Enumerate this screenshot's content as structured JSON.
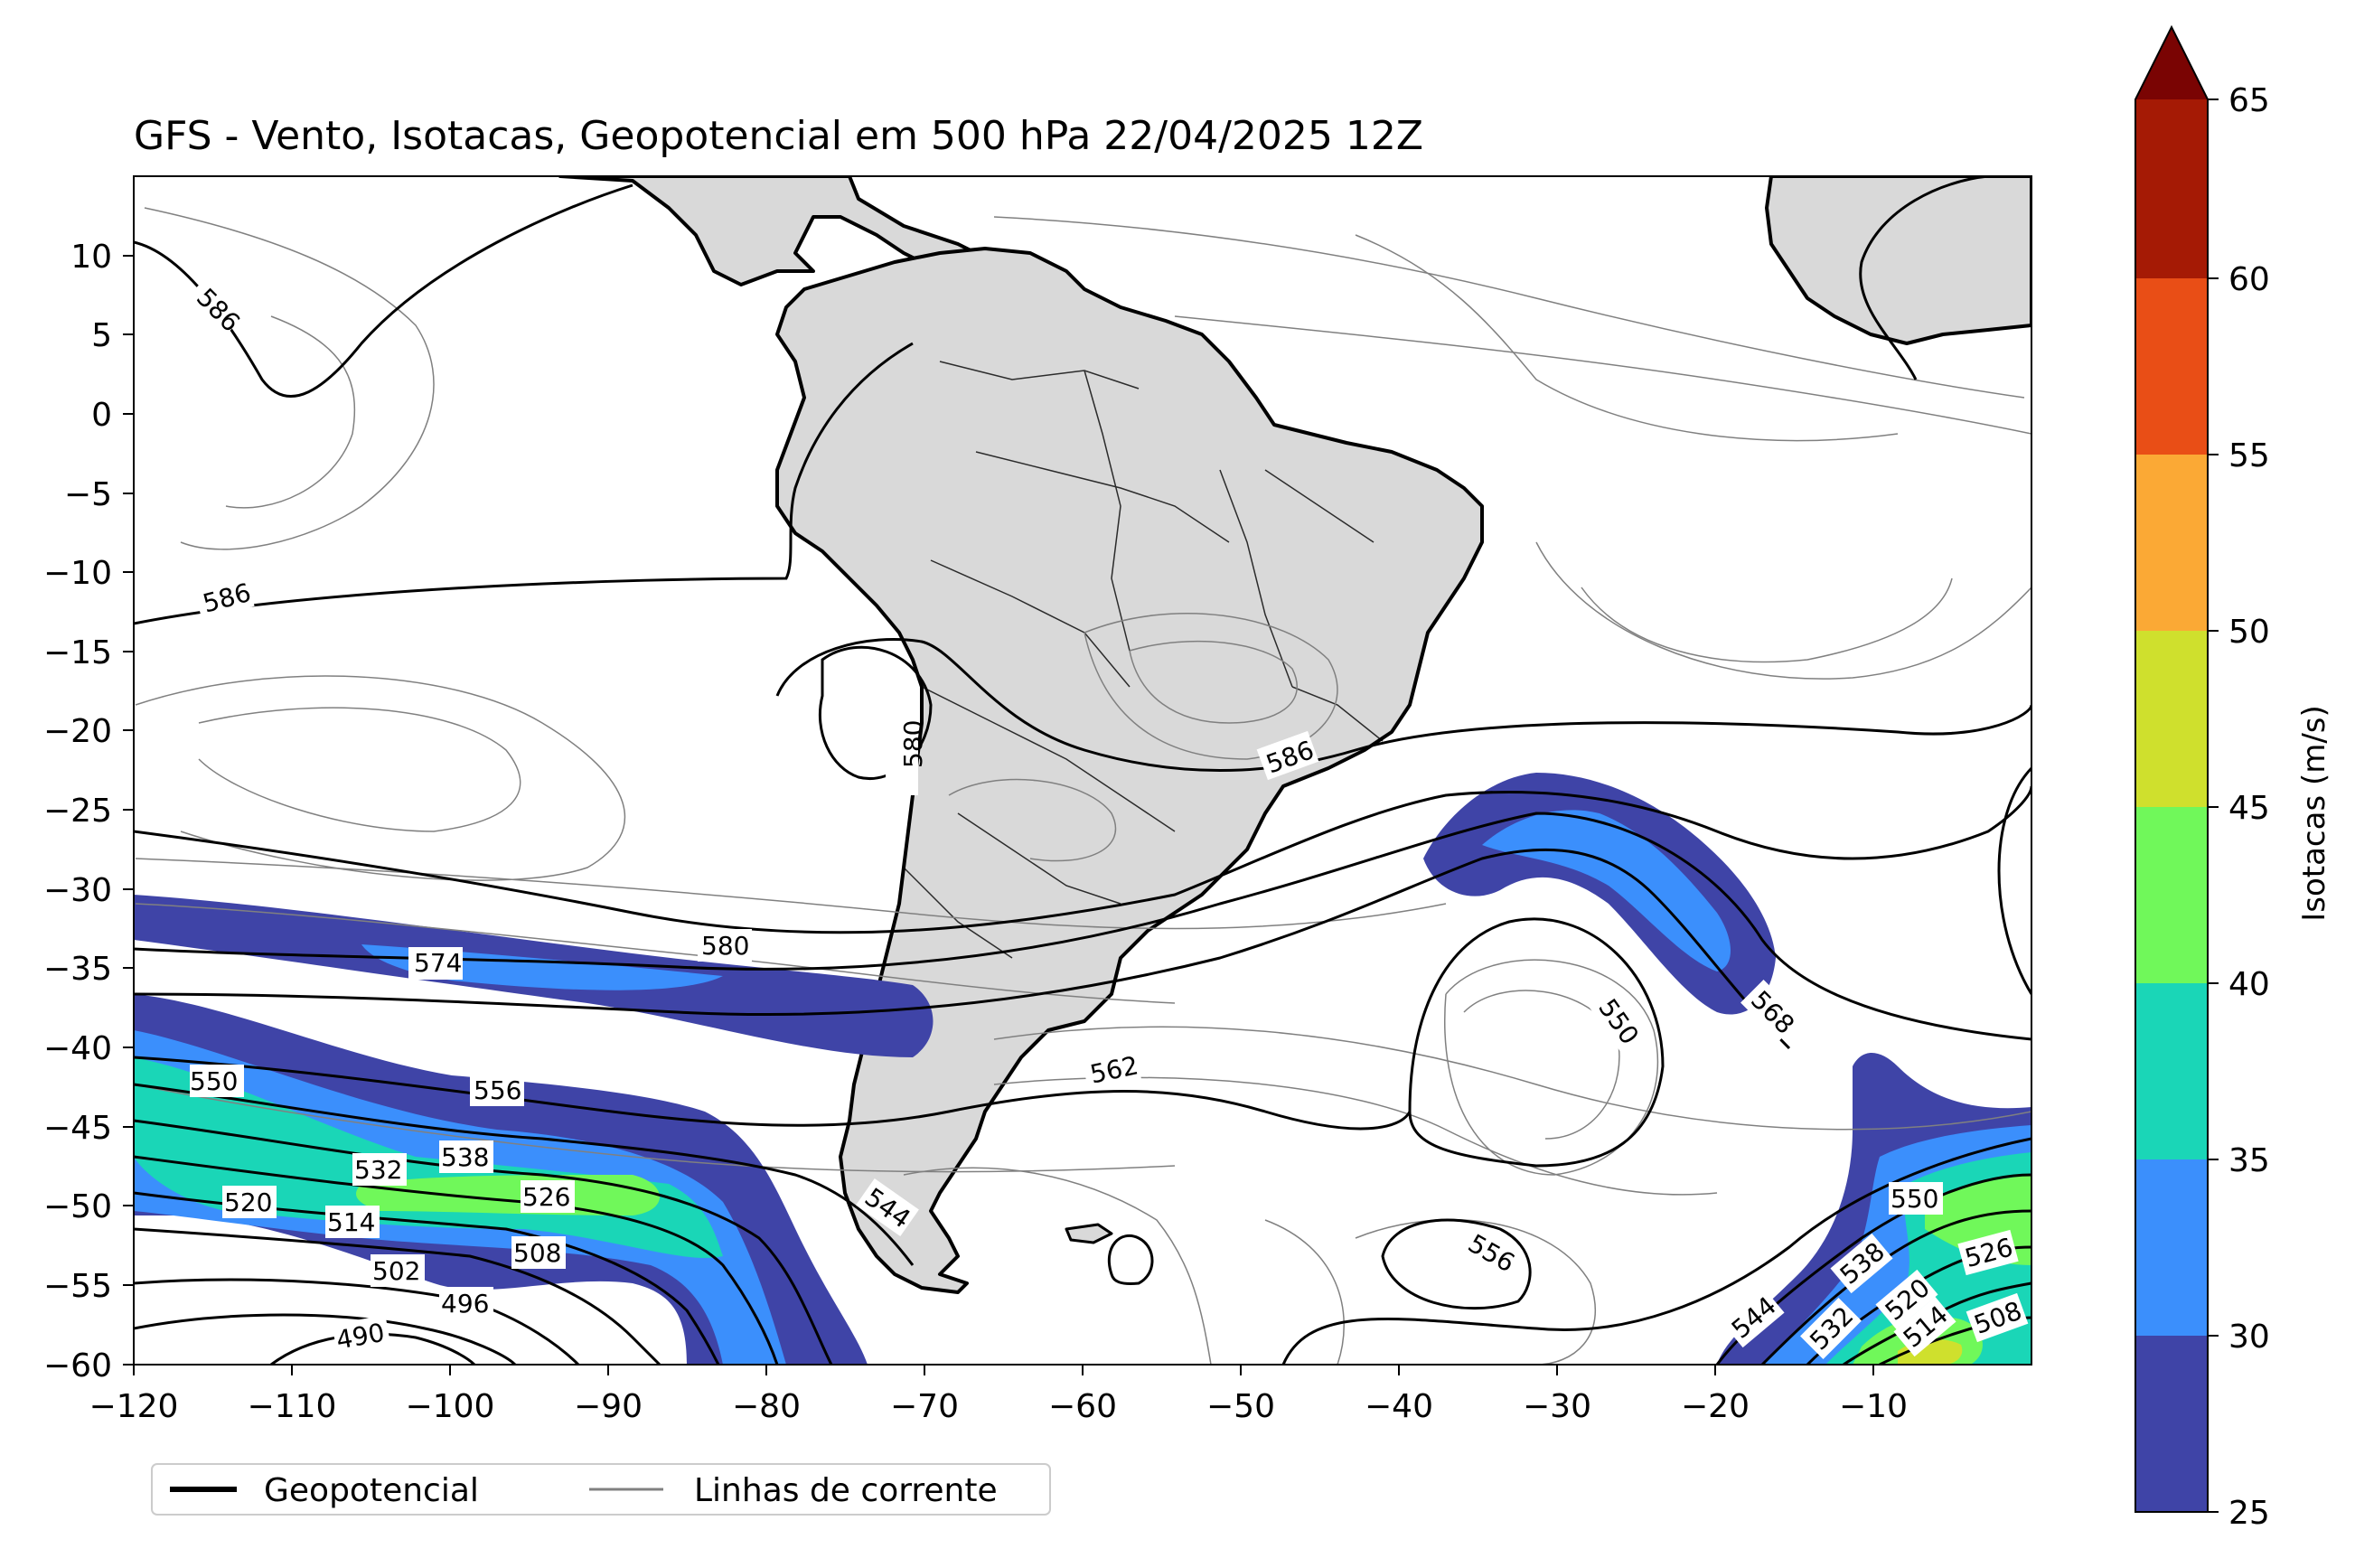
{
  "title": "GFS - Vento, Isotacas, Geopotencial em 500 hPa 22/04/2025 12Z",
  "map": {
    "lon_range": [
      -120,
      0
    ],
    "lat_range": [
      -60,
      15
    ],
    "lon_ticks": [
      "−120",
      "−110",
      "−100",
      "−90",
      "−80",
      "−70",
      "−60",
      "−50",
      "−40",
      "−30",
      "−20",
      "−10"
    ],
    "lat_ticks": [
      "10",
      "5",
      "0",
      "−5",
      "−10",
      "−15",
      "−20",
      "−25",
      "−30",
      "−35",
      "−40",
      "−45",
      "−50",
      "−55",
      "−60"
    ],
    "land_color": "#d9d9d9",
    "geopotential_labels": [
      "586",
      "586",
      "586",
      "580",
      "580",
      "574",
      "568",
      "562",
      "556",
      "556",
      "550",
      "550",
      "550",
      "544",
      "544",
      "538",
      "538",
      "532",
      "532",
      "526",
      "526",
      "520",
      "520",
      "514",
      "514",
      "508",
      "508",
      "502",
      "496",
      "490"
    ]
  },
  "legend": {
    "geopotential": "Geopotencial",
    "streamlines": "Linhas de corrente"
  },
  "colorbar": {
    "label": "Isotacas (m/s)",
    "ticks": [
      "25",
      "30",
      "35",
      "40",
      "45",
      "50",
      "55",
      "60",
      "65"
    ],
    "colors": [
      "#3f44a7",
      "#3b8ffc",
      "#1ad6b7",
      "#70f85a",
      "#cfe02d",
      "#fba935",
      "#e94e16",
      "#a51a05",
      "#7a0403"
    ],
    "extend": "max"
  }
}
